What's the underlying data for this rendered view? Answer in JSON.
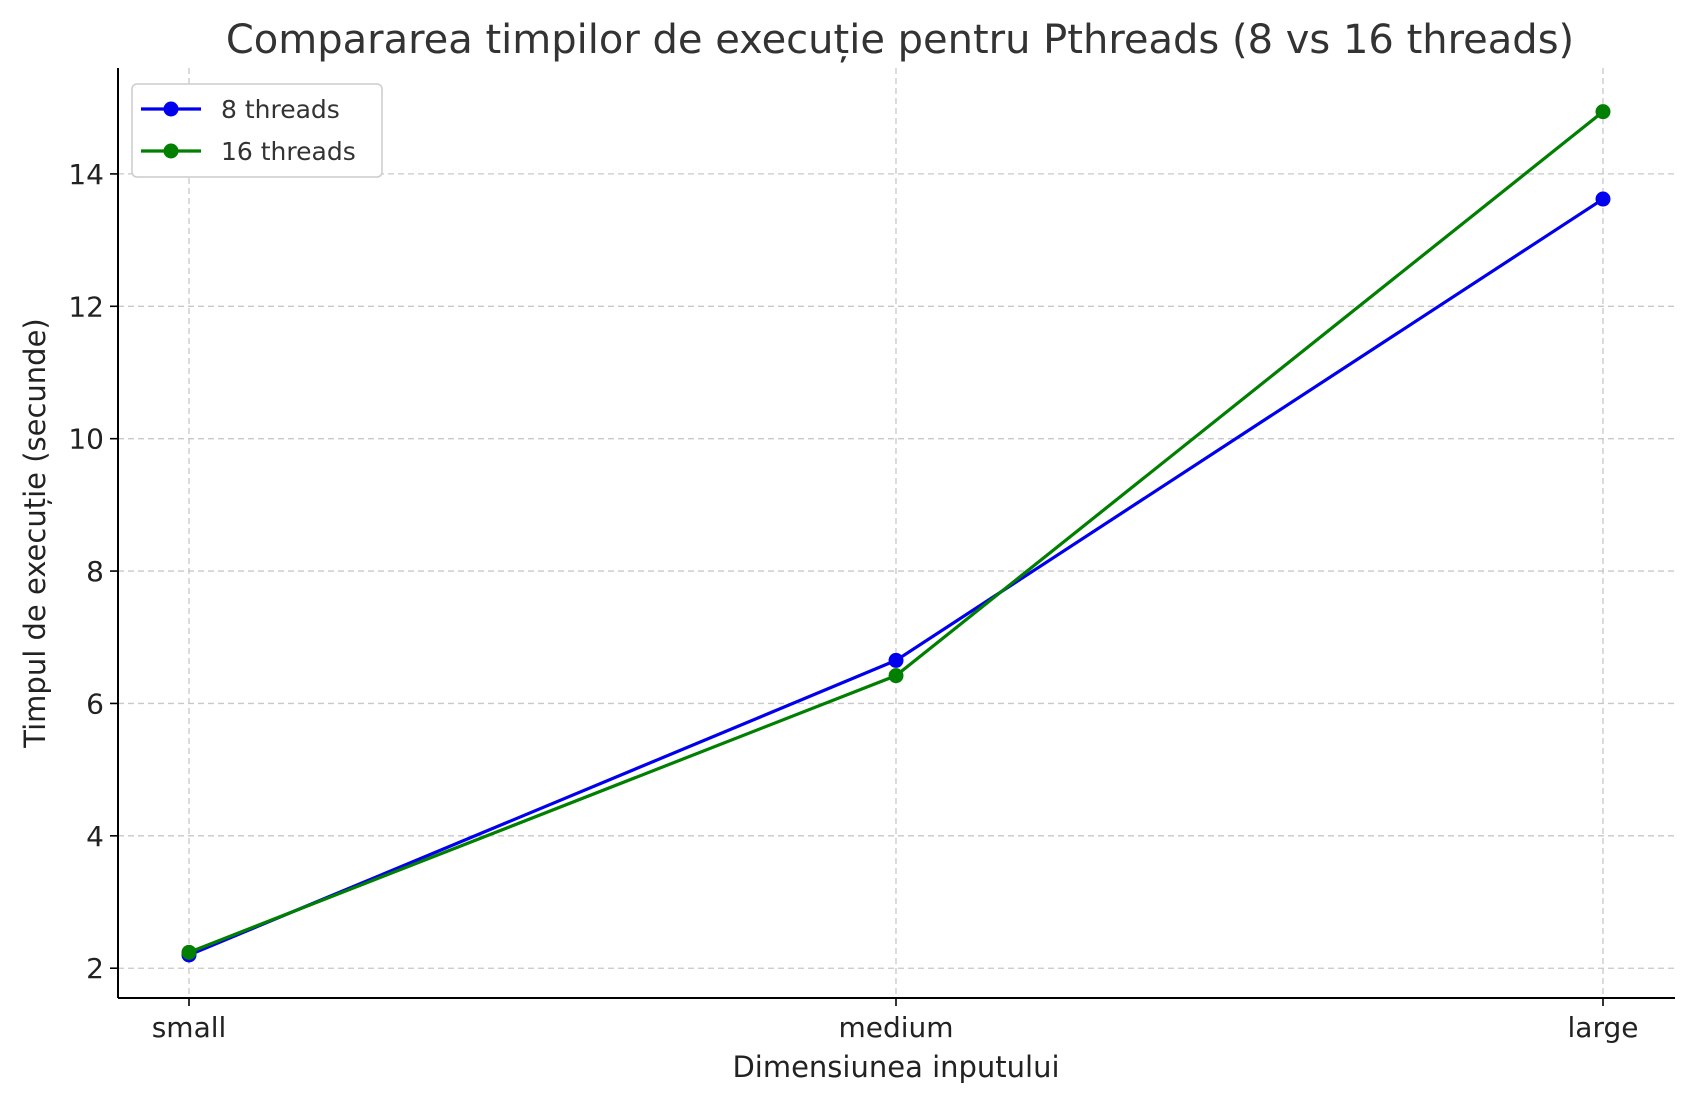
{
  "chart_data": {
    "type": "line",
    "title": "Compararea timpilor de execuție pentru Pthreads (8 vs 16 threads)",
    "xlabel": "Dimensiunea inputului",
    "ylabel": "Timpul de execuție (secunde)",
    "categories": [
      "small",
      "medium",
      "large"
    ],
    "series": [
      {
        "name": "8 threads",
        "color": "#0000ee",
        "values": [
          2.2,
          6.65,
          13.62
        ]
      },
      {
        "name": "16 threads",
        "color": "#007f00",
        "values": [
          2.24,
          6.42,
          14.94
        ]
      }
    ],
    "ylim": [
      1.55,
      15.6
    ],
    "yticks": [
      2,
      4,
      6,
      8,
      10,
      12,
      14
    ],
    "grid": true,
    "legend": "top-left"
  }
}
